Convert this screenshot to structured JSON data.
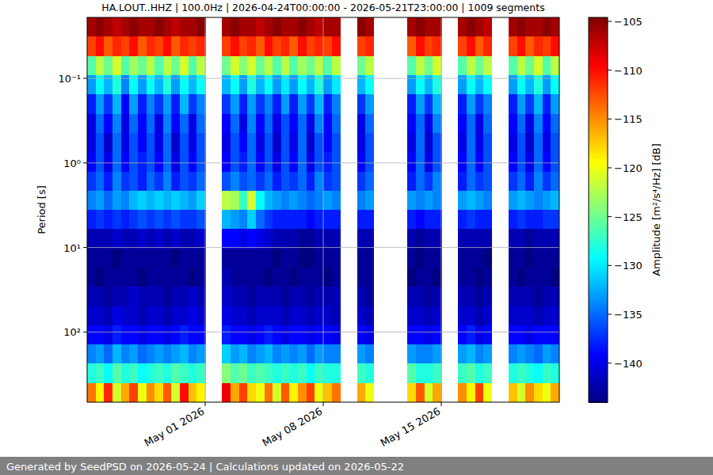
{
  "chart_data": {
    "type": "heatmap",
    "title": "HA.LOUT..HHZ | 100.0Hz | 2026-04-24T00:00:00 - 2026-05-21T23:00:00 | 1009 segments",
    "y_label": "Period [s]",
    "footer": "Generated by SeedPSD on 2026-05-24 | Calculations updated on 2026-05-22",
    "log": "y",
    "grid": true,
    "xlim": [
      "2026-04-24T00:00:00",
      "2026-05-22T00:00:00"
    ],
    "xticks": [
      {
        "value": "2026-05-01T00:00:00",
        "label": "May 01 2026"
      },
      {
        "value": "2026-05-08T00:00:00",
        "label": "May 08 2026"
      },
      {
        "value": "2026-05-15T00:00:00",
        "label": "May 15 2026"
      }
    ],
    "ylim": [
      676,
      0.019
    ],
    "yticks": [
      {
        "value": 0.1,
        "label": "10⁻¹"
      },
      {
        "value": 1,
        "label": "10⁰"
      },
      {
        "value": 10,
        "label": "10¹"
      },
      {
        "value": 100,
        "label": "10²"
      }
    ],
    "x_bins": [
      "2026-04-24T00:00:00",
      "2026-04-24T12:00:00",
      "2026-04-25T00:00:00",
      "2026-04-25T12:00:00",
      "2026-04-26T00:00:00",
      "2026-04-26T12:00:00",
      "2026-04-27T00:00:00",
      "2026-04-27T12:00:00",
      "2026-04-28T00:00:00",
      "2026-04-28T12:00:00",
      "2026-04-29T00:00:00",
      "2026-04-29T12:00:00",
      "2026-04-30T00:00:00",
      "2026-04-30T12:00:00",
      "2026-05-01T00:00:00",
      "2026-05-01T12:00:00",
      "2026-05-02T00:00:00",
      "2026-05-02T12:00:00",
      "2026-05-03T00:00:00",
      "2026-05-03T12:00:00",
      "2026-05-04T00:00:00",
      "2026-05-04T12:00:00",
      "2026-05-05T00:00:00",
      "2026-05-05T12:00:00",
      "2026-05-06T00:00:00",
      "2026-05-06T12:00:00",
      "2026-05-07T00:00:00",
      "2026-05-07T12:00:00",
      "2026-05-08T00:00:00",
      "2026-05-08T12:00:00",
      "2026-05-09T00:00:00",
      "2026-05-09T12:00:00",
      "2026-05-10T00:00:00",
      "2026-05-10T12:00:00",
      "2026-05-11T00:00:00",
      "2026-05-11T12:00:00",
      "2026-05-12T00:00:00",
      "2026-05-12T12:00:00",
      "2026-05-13T00:00:00",
      "2026-05-13T12:00:00",
      "2026-05-14T00:00:00",
      "2026-05-14T12:00:00",
      "2026-05-15T00:00:00",
      "2026-05-15T12:00:00",
      "2026-05-16T00:00:00",
      "2026-05-16T12:00:00",
      "2026-05-17T00:00:00",
      "2026-05-17T12:00:00",
      "2026-05-18T00:00:00",
      "2026-05-18T12:00:00",
      "2026-05-19T00:00:00",
      "2026-05-19T12:00:00",
      "2026-05-20T00:00:00",
      "2026-05-20T12:00:00",
      "2026-05-21T00:00:00",
      "2026-05-21T12:00:00",
      "2026-05-22T00:00:00"
    ],
    "y_bins": [
      0.019,
      0.0322,
      0.0543,
      0.0917,
      0.155,
      0.262,
      0.442,
      0.746,
      1.26,
      2.13,
      3.59,
      6.06,
      10.2,
      17.3,
      29.2,
      49.3,
      83.2,
      140,
      237,
      400,
      676
    ],
    "values": [
      [
        -106,
        -105,
        -106,
        -107,
        -106,
        -105,
        -106,
        -106,
        -105,
        -106,
        -107,
        -106,
        -106,
        -105,
        null,
        null,
        -106,
        -105,
        -106,
        -106,
        -107,
        -106,
        -105,
        -106,
        -106,
        -105,
        -106,
        -107,
        -106,
        -106,
        null,
        null,
        -105,
        -106,
        null,
        null,
        null,
        null,
        -106,
        -105,
        -106,
        -106,
        null,
        null,
        -106,
        -105,
        -106,
        -107,
        null,
        null,
        -106,
        -105,
        -106,
        -106,
        -105,
        -106
      ],
      [
        -112,
        -110,
        -113,
        -111,
        -112,
        -110,
        -113,
        -111,
        -112,
        -110,
        -113,
        -111,
        -112,
        -111,
        null,
        null,
        -112,
        -110,
        -112,
        -111,
        -113,
        -110,
        -112,
        -111,
        -113,
        -110,
        -112,
        -111,
        -112,
        -110,
        null,
        null,
        -112,
        -111,
        null,
        null,
        null,
        null,
        -113,
        -110,
        -112,
        -111,
        null,
        null,
        -112,
        -110,
        -113,
        -111,
        null,
        null,
        -112,
        -110,
        -113,
        -111,
        -112,
        -110
      ],
      [
        -126,
        -122,
        -125,
        -121,
        -126,
        -123,
        -125,
        -122,
        -126,
        -122,
        -125,
        -121,
        -126,
        -122,
        null,
        null,
        -125,
        -121,
        -124,
        -121,
        -125,
        -122,
        -126,
        -122,
        -126,
        -123,
        -125,
        -122,
        -126,
        -122,
        null,
        null,
        -125,
        -122,
        null,
        null,
        null,
        null,
        -126,
        -122,
        -125,
        -121,
        null,
        null,
        -126,
        -122,
        -125,
        -122,
        null,
        null,
        -126,
        -122,
        -125,
        -121,
        -126,
        -122
      ],
      [
        -133,
        -129,
        -132,
        -128,
        -134,
        -129,
        -133,
        -129,
        -132,
        -128,
        -133,
        -129,
        -132,
        -129,
        null,
        null,
        -132,
        -129,
        -133,
        -128,
        -132,
        -129,
        -133,
        -130,
        -133,
        -129,
        -132,
        -128,
        -133,
        -130,
        null,
        null,
        -132,
        -129,
        null,
        null,
        null,
        null,
        -133,
        -129,
        -132,
        -128,
        null,
        null,
        -133,
        -129,
        -132,
        -129,
        null,
        null,
        -133,
        -129,
        -132,
        -128,
        -133,
        -129
      ],
      [
        -138,
        -133,
        -137,
        -132,
        -139,
        -133,
        -138,
        -134,
        -137,
        -133,
        -138,
        -132,
        -137,
        -134,
        null,
        null,
        -137,
        -133,
        -138,
        -133,
        -137,
        -134,
        -138,
        -133,
        -138,
        -133,
        -137,
        -132,
        -138,
        -134,
        null,
        null,
        -137,
        -133,
        null,
        null,
        null,
        null,
        -138,
        -133,
        -137,
        -132,
        null,
        null,
        -138,
        -133,
        -137,
        -134,
        null,
        null,
        -138,
        -133,
        -137,
        -132,
        -138,
        -133
      ],
      [
        -140,
        -135,
        -139,
        -134,
        -140,
        -135,
        -139,
        -135,
        -140,
        -134,
        -139,
        -135,
        -140,
        -135,
        null,
        null,
        -139,
        -135,
        -140,
        -134,
        -139,
        -135,
        -140,
        -136,
        -139,
        -135,
        -140,
        -134,
        -139,
        -135,
        null,
        null,
        -140,
        -135,
        null,
        null,
        null,
        null,
        -139,
        -135,
        -140,
        -134,
        null,
        null,
        -139,
        -135,
        -140,
        -135,
        null,
        null,
        -139,
        -135,
        -140,
        -134,
        -139,
        -135
      ],
      [
        -140,
        -136,
        -141,
        -135,
        -140,
        -136,
        -139,
        -136,
        -140,
        -135,
        -141,
        -136,
        -140,
        -136,
        null,
        null,
        -140,
        -136,
        -139,
        -135,
        -140,
        -136,
        -141,
        -136,
        -140,
        -135,
        -141,
        -136,
        -139,
        -136,
        null,
        null,
        -140,
        -136,
        null,
        null,
        null,
        null,
        -140,
        -135,
        -141,
        -136,
        null,
        null,
        -140,
        -135,
        -140,
        -136,
        null,
        null,
        -140,
        -136,
        -141,
        -135,
        -140,
        -136
      ],
      [
        -139,
        -136,
        -140,
        -135,
        -139,
        -136,
        -138,
        -136,
        -139,
        -135,
        -140,
        -136,
        -139,
        -136,
        null,
        null,
        -139,
        -136,
        -138,
        -135,
        -139,
        -136,
        -140,
        -136,
        -139,
        -135,
        -140,
        -136,
        -138,
        -136,
        null,
        null,
        -139,
        -136,
        null,
        null,
        null,
        null,
        -139,
        -135,
        -140,
        -136,
        null,
        null,
        -139,
        -135,
        -139,
        -136,
        null,
        null,
        -139,
        -136,
        -140,
        -135,
        -139,
        -136
      ],
      [
        -137,
        -135,
        -138,
        -134,
        -137,
        -136,
        -138,
        -135,
        -137,
        -134,
        -138,
        -136,
        -137,
        -135,
        null,
        null,
        -136,
        -134,
        -136,
        -135,
        -137,
        -135,
        -138,
        -136,
        -137,
        -135,
        -138,
        -134,
        -137,
        -136,
        null,
        null,
        -137,
        -135,
        null,
        null,
        null,
        null,
        -138,
        -135,
        -137,
        -134,
        null,
        null,
        -138,
        -135,
        -137,
        -136,
        null,
        null,
        -137,
        -135,
        -138,
        -134,
        -137,
        -135
      ],
      [
        -134,
        -133,
        -135,
        -133,
        -134,
        -132,
        -131,
        -132,
        -131,
        -132,
        -131,
        -132,
        -133,
        -131,
        null,
        null,
        -122,
        -123,
        -127,
        -121,
        -129,
        -132,
        -133,
        -134,
        -133,
        -134,
        -135,
        -134,
        -133,
        -134,
        null,
        null,
        -134,
        -133,
        null,
        null,
        null,
        null,
        -133,
        -134,
        -133,
        -134,
        null,
        null,
        -133,
        -132,
        -133,
        -134,
        null,
        null,
        -133,
        -132,
        -133,
        -134,
        -133,
        -132
      ],
      [
        -138,
        -137,
        -138,
        -137,
        -138,
        -137,
        -136,
        -137,
        -136,
        -137,
        -136,
        -137,
        -137,
        -136,
        null,
        null,
        -132,
        -133,
        -134,
        -131,
        -135,
        -137,
        -138,
        -138,
        -138,
        -138,
        -139,
        -138,
        -138,
        -138,
        null,
        null,
        -138,
        -138,
        null,
        null,
        null,
        null,
        -138,
        -139,
        -138,
        -138,
        null,
        null,
        -138,
        -137,
        -138,
        -138,
        null,
        null,
        -138,
        -137,
        -138,
        -138,
        -137,
        -137
      ],
      [
        -142,
        -142,
        -142,
        -141,
        -142,
        -142,
        -141,
        -142,
        -141,
        -142,
        -141,
        -142,
        -142,
        -141,
        null,
        null,
        -139,
        -139,
        -140,
        -139,
        -140,
        -141,
        -142,
        -142,
        -142,
        -143,
        -143,
        -142,
        -142,
        -142,
        null,
        null,
        -142,
        -142,
        null,
        null,
        null,
        null,
        -142,
        -143,
        -142,
        -142,
        null,
        null,
        -142,
        -142,
        -142,
        -142,
        null,
        null,
        -142,
        -142,
        -143,
        -142,
        -142,
        -142
      ],
      [
        -143,
        -143,
        -143,
        -144,
        -143,
        -143,
        -143,
        -143,
        -143,
        -143,
        -144,
        -143,
        -143,
        -143,
        null,
        null,
        -143,
        -143,
        -143,
        -143,
        -143,
        -143,
        -144,
        -143,
        -143,
        -144,
        -144,
        -143,
        -143,
        -143,
        null,
        null,
        -143,
        -143,
        null,
        null,
        null,
        null,
        -143,
        -144,
        -143,
        -143,
        null,
        null,
        -143,
        -143,
        -143,
        -144,
        null,
        null,
        -143,
        -143,
        -144,
        -143,
        -143,
        -143
      ],
      [
        -143,
        -144,
        -143,
        -143,
        -143,
        -143,
        -144,
        -143,
        -143,
        -143,
        -143,
        -143,
        -144,
        -143,
        null,
        null,
        -142,
        -143,
        -143,
        -143,
        -143,
        -144,
        -143,
        -143,
        -144,
        -143,
        -143,
        -143,
        -144,
        -143,
        null,
        null,
        -143,
        -143,
        null,
        null,
        null,
        null,
        -144,
        -143,
        -143,
        -144,
        null,
        null,
        -143,
        -143,
        -144,
        -143,
        null,
        null,
        -143,
        -144,
        -143,
        -143,
        -143,
        -144
      ],
      [
        -142,
        -142,
        -143,
        -142,
        -142,
        -141,
        -142,
        -142,
        -142,
        -143,
        -142,
        -142,
        -141,
        -142,
        null,
        null,
        -141,
        -142,
        -142,
        -143,
        -142,
        -142,
        -142,
        -143,
        -142,
        -142,
        -143,
        -142,
        -142,
        -142,
        null,
        null,
        -142,
        -143,
        null,
        null,
        null,
        null,
        -142,
        -142,
        -143,
        -142,
        null,
        null,
        -142,
        -142,
        -143,
        -142,
        null,
        null,
        -142,
        -142,
        -142,
        -143,
        -142,
        -142
      ],
      [
        -141,
        -141,
        -142,
        -140,
        -141,
        -141,
        -142,
        -141,
        -141,
        -142,
        -141,
        -141,
        -140,
        -141,
        null,
        null,
        -140,
        -141,
        -141,
        -142,
        -141,
        -141,
        -141,
        -142,
        -141,
        -141,
        -142,
        -141,
        -141,
        -142,
        null,
        null,
        -141,
        -142,
        null,
        null,
        null,
        null,
        -141,
        -141,
        -142,
        -141,
        null,
        null,
        -141,
        -141,
        -142,
        -141,
        null,
        null,
        -141,
        -141,
        -141,
        -142,
        -141,
        -141
      ],
      [
        -139,
        -139,
        -140,
        -138,
        -139,
        -139,
        -140,
        -139,
        -139,
        -140,
        -139,
        -138,
        -139,
        -139,
        null,
        null,
        -138,
        -139,
        -139,
        -140,
        -139,
        -138,
        -139,
        -140,
        -139,
        -139,
        -140,
        -139,
        -139,
        -140,
        null,
        null,
        -139,
        -140,
        null,
        null,
        null,
        null,
        -139,
        -139,
        -140,
        -139,
        null,
        null,
        -139,
        -138,
        -140,
        -139,
        null,
        null,
        -139,
        -139,
        -140,
        -139,
        -139,
        -139
      ],
      [
        -134,
        -133,
        -135,
        -132,
        -134,
        -133,
        -135,
        -134,
        -133,
        -134,
        -133,
        -132,
        -134,
        -133,
        null,
        null,
        -131,
        -133,
        -132,
        -134,
        -133,
        -132,
        -134,
        -133,
        -134,
        -133,
        -135,
        -133,
        -134,
        -134,
        null,
        null,
        -133,
        -134,
        null,
        null,
        null,
        null,
        -133,
        -134,
        -134,
        -133,
        null,
        null,
        -133,
        -132,
        -134,
        -133,
        null,
        null,
        -134,
        -133,
        -134,
        -135,
        -133,
        -134
      ],
      [
        -128,
        -127,
        -129,
        -126,
        -128,
        -127,
        -129,
        -128,
        -127,
        -128,
        -126,
        -127,
        -128,
        -127,
        null,
        null,
        -124,
        -126,
        -125,
        -127,
        -126,
        -127,
        -128,
        -127,
        -128,
        -127,
        -129,
        -127,
        -128,
        -128,
        null,
        null,
        -127,
        -128,
        null,
        null,
        null,
        null,
        -126,
        -128,
        -128,
        -127,
        null,
        null,
        -127,
        -126,
        -128,
        -127,
        null,
        null,
        -128,
        -127,
        -128,
        -129,
        -127,
        -128
      ],
      [
        -114,
        -119,
        -111,
        -121,
        -116,
        -112,
        -120,
        -115,
        -118,
        -113,
        -121,
        -110,
        -117,
        -119,
        null,
        null,
        -109,
        -116,
        -112,
        -118,
        -120,
        -114,
        -121,
        -113,
        -119,
        -115,
        -112,
        -120,
        -117,
        -114,
        null,
        null,
        -116,
        -120,
        null,
        null,
        null,
        null,
        -118,
        -113,
        -121,
        -116,
        null,
        null,
        -115,
        -119,
        -112,
        -120,
        null,
        null,
        -117,
        -121,
        -115,
        -118,
        -120,
        -116
      ]
    ],
    "colorbar": {
      "label": "Amplitude [m²/s⁴/Hz] [dB]",
      "lim": [
        -144,
        -104.6
      ],
      "ticks": [
        {
          "value": -105,
          "label": "−105"
        },
        {
          "value": -110,
          "label": "−110"
        },
        {
          "value": -115,
          "label": "−115"
        },
        {
          "value": -120,
          "label": "−120"
        },
        {
          "value": -125,
          "label": "−125"
        },
        {
          "value": -130,
          "label": "−130"
        },
        {
          "value": -135,
          "label": "−135"
        },
        {
          "value": -140,
          "label": "−140"
        }
      ]
    }
  }
}
